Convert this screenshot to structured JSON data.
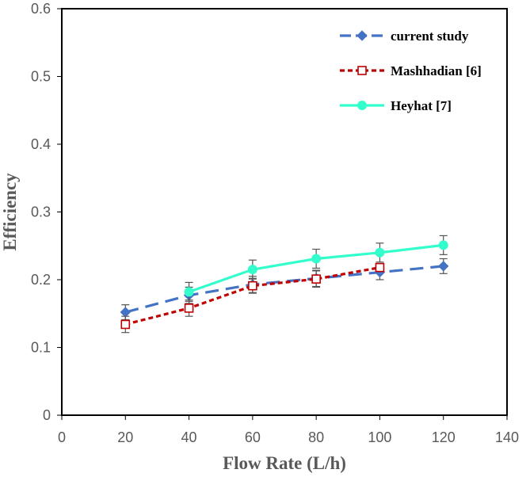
{
  "chart_data": {
    "type": "line",
    "title": "",
    "xlabel": "Flow Rate (L/h)",
    "ylabel": "Efficiency",
    "xlim": [
      0,
      140
    ],
    "ylim": [
      0,
      0.6
    ],
    "x_ticks": [
      "0",
      "20",
      "40",
      "60",
      "80",
      "100",
      "120",
      "140"
    ],
    "y_ticks": [
      "0",
      "0.1",
      "0.2",
      "0.3",
      "0.4",
      "0.5",
      "0.6"
    ],
    "grid": false,
    "legend_position": "top-right",
    "series": [
      {
        "name": "current study",
        "color": "#4472c4",
        "line_style": "long-dash",
        "marker": "diamond",
        "x": [
          20,
          40,
          60,
          80,
          100,
          120
        ],
        "y": [
          0.152,
          0.177,
          0.193,
          0.202,
          0.211,
          0.22
        ],
        "err": [
          0.011,
          0.012,
          0.012,
          0.012,
          0.011,
          0.011
        ]
      },
      {
        "name": "Mashhadian [6]",
        "color": "#c00000",
        "line_style": "short-dash",
        "marker": "open-square",
        "x": [
          20,
          40,
          60,
          80,
          100
        ],
        "y": [
          0.134,
          0.158,
          0.191,
          0.201,
          0.218
        ],
        "err": [
          0.012,
          0.012,
          0.011,
          0.012,
          0.0
        ]
      },
      {
        "name": "Heyhat [7]",
        "color": "#33ffcc",
        "line_style": "solid",
        "marker": "circle",
        "x": [
          40,
          60,
          80,
          100,
          120
        ],
        "y": [
          0.182,
          0.215,
          0.231,
          0.24,
          0.251
        ],
        "err": [
          0.014,
          0.014,
          0.014,
          0.014,
          0.014
        ]
      }
    ]
  }
}
